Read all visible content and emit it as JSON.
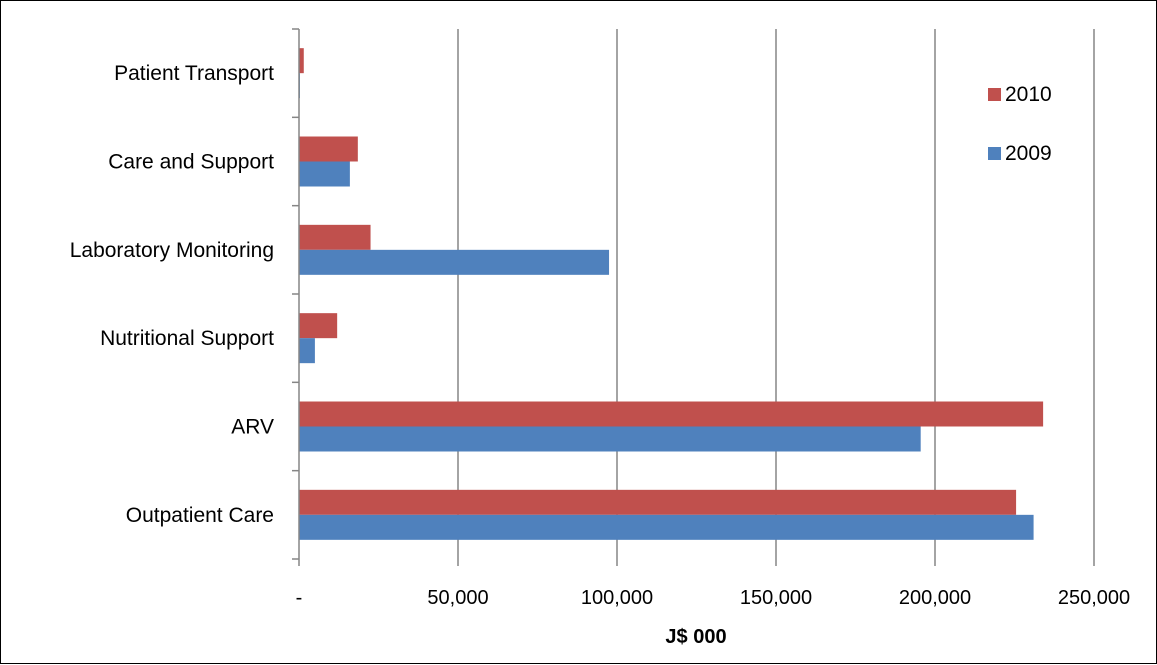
{
  "chart_data": {
    "type": "bar",
    "orientation": "horizontal",
    "categories": [
      "Patient Transport",
      "Care and Support",
      "Laboratory Monitoring",
      "Nutritional Support",
      "ARV",
      "Outpatient Care"
    ],
    "series": [
      {
        "name": "2010",
        "color": "#C0504D",
        "values": [
          1500,
          18500,
          22500,
          12000,
          234000,
          225500
        ]
      },
      {
        "name": "2009",
        "color": "#4F81BD",
        "values": [
          300,
          16000,
          97500,
          5000,
          195500,
          231000
        ]
      }
    ],
    "xlabel": "J$ 000",
    "xlim": [
      0,
      250000
    ],
    "x_ticks": [
      0,
      50000,
      100000,
      150000,
      200000,
      250000
    ],
    "x_tick_labels": [
      "-",
      "50,000",
      "100,000",
      "150,000",
      "200,000",
      "250,000"
    ],
    "grid": "vertical-major",
    "legend": "top-right"
  }
}
